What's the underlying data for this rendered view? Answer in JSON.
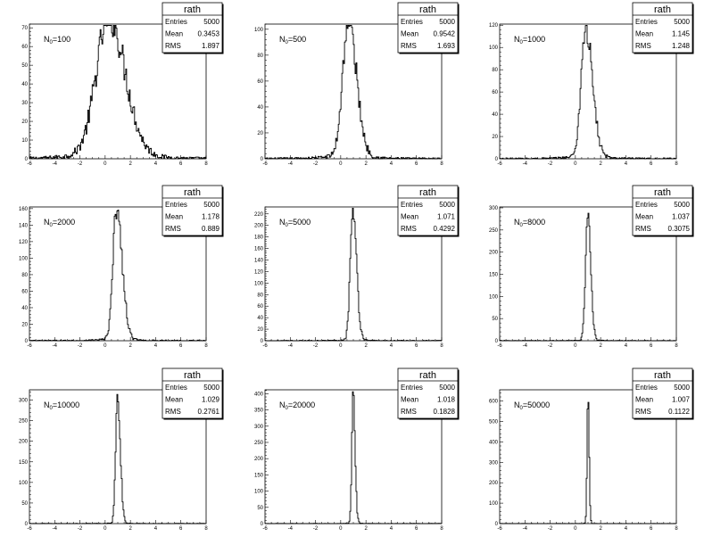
{
  "chart_data": [
    {
      "type": "histogram",
      "label_main": "N",
      "label_sub": "0",
      "label_value": "=100",
      "stats": {
        "title": "rath",
        "entries": "5000",
        "mean": "0.3453",
        "rms": "1.897"
      },
      "xlim": [
        -6,
        8
      ],
      "ylim": [
        0,
        72
      ],
      "xticks": [
        -6,
        -4,
        -2,
        0,
        2,
        4,
        6,
        8
      ],
      "yticks": [
        0,
        10,
        20,
        30,
        40,
        50,
        60,
        70
      ],
      "dist": {
        "peak": 0.3,
        "peak_count": 70,
        "sigma_left": 1.0,
        "sigma_right": 1.3,
        "tail_weight": 0.4,
        "tail_scale": 2.0
      }
    },
    {
      "type": "histogram",
      "label_main": "N",
      "label_sub": "0",
      "label_value": "=500",
      "stats": {
        "title": "rath",
        "entries": "5000",
        "mean": "0.9542",
        "rms": "1.693"
      },
      "xlim": [
        -6,
        8
      ],
      "ylim": [
        0,
        104
      ],
      "xticks": [
        -6,
        -4,
        -2,
        0,
        2,
        4,
        6,
        8
      ],
      "yticks": [
        0,
        20,
        40,
        60,
        80,
        100
      ],
      "dist": {
        "peak": 0.6,
        "peak_count": 102,
        "sigma_left": 0.45,
        "sigma_right": 0.65,
        "tail_weight": 0.2,
        "tail_scale": 1.4
      }
    },
    {
      "type": "histogram",
      "label_main": "N",
      "label_sub": "0",
      "label_value": "=1000",
      "stats": {
        "title": "rath",
        "entries": "5000",
        "mean": "1.145",
        "rms": "1.248"
      },
      "xlim": [
        -6,
        8
      ],
      "ylim": [
        0,
        121
      ],
      "xticks": [
        -6,
        -4,
        -2,
        0,
        2,
        4,
        6,
        8
      ],
      "yticks": [
        0,
        20,
        40,
        60,
        80,
        100,
        120
      ],
      "dist": {
        "peak": 0.8,
        "peak_count": 114,
        "sigma_left": 0.35,
        "sigma_right": 0.55,
        "tail_weight": 0.15,
        "tail_scale": 1.2
      }
    },
    {
      "type": "histogram",
      "label_main": "N",
      "label_sub": "0",
      "label_value": "=2000",
      "stats": {
        "title": "rath",
        "entries": "5000",
        "mean": "1.178",
        "rms": "0.889"
      },
      "xlim": [
        -6,
        8
      ],
      "ylim": [
        0,
        162
      ],
      "xticks": [
        -6,
        -4,
        -2,
        0,
        2,
        4,
        6,
        8
      ],
      "yticks": [
        0,
        20,
        40,
        60,
        80,
        100,
        120,
        140,
        160
      ],
      "dist": {
        "peak": 0.9,
        "peak_count": 155,
        "sigma_left": 0.28,
        "sigma_right": 0.45,
        "tail_weight": 0.12,
        "tail_scale": 1.0
      }
    },
    {
      "type": "histogram",
      "label_main": "N",
      "label_sub": "0",
      "label_value": "=5000",
      "stats": {
        "title": "rath",
        "entries": "5000",
        "mean": "1.071",
        "rms": "0.4292"
      },
      "xlim": [
        -6,
        8
      ],
      "ylim": [
        0,
        232
      ],
      "xticks": [
        -6,
        -4,
        -2,
        0,
        2,
        4,
        6,
        8
      ],
      "yticks": [
        0,
        20,
        40,
        60,
        80,
        100,
        120,
        140,
        160,
        180,
        200,
        220
      ],
      "dist": {
        "peak": 0.95,
        "peak_count": 225,
        "sigma_left": 0.2,
        "sigma_right": 0.3,
        "tail_weight": 0.06,
        "tail_scale": 0.8
      }
    },
    {
      "type": "histogram",
      "label_main": "N",
      "label_sub": "0",
      "label_value": "=8000",
      "stats": {
        "title": "rath",
        "entries": "5000",
        "mean": "1.037",
        "rms": "0.3075"
      },
      "xlim": [
        -6,
        8
      ],
      "ylim": [
        0,
        302
      ],
      "xticks": [
        -6,
        -4,
        -2,
        0,
        2,
        4,
        6,
        8
      ],
      "yticks": [
        0,
        50,
        100,
        150,
        200,
        250,
        300
      ],
      "dist": {
        "peak": 0.97,
        "peak_count": 285,
        "sigma_left": 0.17,
        "sigma_right": 0.24,
        "tail_weight": 0.04,
        "tail_scale": 0.7
      }
    },
    {
      "type": "histogram",
      "label_main": "N",
      "label_sub": "0",
      "label_value": "=10000",
      "stats": {
        "title": "rath",
        "entries": "5000",
        "mean": "1.029",
        "rms": "0.2761"
      },
      "xlim": [
        -6,
        8
      ],
      "ylim": [
        0,
        325
      ],
      "xticks": [
        -6,
        -4,
        -2,
        0,
        2,
        4,
        6,
        8
      ],
      "yticks": [
        0,
        50,
        100,
        150,
        200,
        250,
        300
      ],
      "dist": {
        "peak": 0.98,
        "peak_count": 310,
        "sigma_left": 0.15,
        "sigma_right": 0.22,
        "tail_weight": 0.03,
        "tail_scale": 0.6
      }
    },
    {
      "type": "histogram",
      "label_main": "N",
      "label_sub": "0",
      "label_value": "=20000",
      "stats": {
        "title": "rath",
        "entries": "5000",
        "mean": "1.018",
        "rms": "0.1828"
      },
      "xlim": [
        -6,
        8
      ],
      "ylim": [
        0,
        412
      ],
      "xticks": [
        -6,
        -4,
        -2,
        0,
        2,
        4,
        6,
        8
      ],
      "yticks": [
        0,
        50,
        100,
        150,
        200,
        250,
        300,
        350,
        400
      ],
      "dist": {
        "peak": 0.99,
        "peak_count": 395,
        "sigma_left": 0.11,
        "sigma_right": 0.15,
        "tail_weight": 0.02,
        "tail_scale": 0.5
      }
    },
    {
      "type": "histogram",
      "label_main": "N",
      "label_sub": "0",
      "label_value": "=50000",
      "stats": {
        "title": "rath",
        "entries": "5000",
        "mean": "1.007",
        "rms": "0.1122"
      },
      "xlim": [
        -6,
        8
      ],
      "ylim": [
        0,
        655
      ],
      "xticks": [
        -6,
        -4,
        -2,
        0,
        2,
        4,
        6,
        8
      ],
      "yticks": [
        0,
        100,
        200,
        300,
        400,
        500,
        600
      ],
      "dist": {
        "peak": 1.0,
        "peak_count": 645,
        "sigma_left": 0.07,
        "sigma_right": 0.09,
        "tail_weight": 0.01,
        "tail_scale": 0.4
      }
    }
  ]
}
